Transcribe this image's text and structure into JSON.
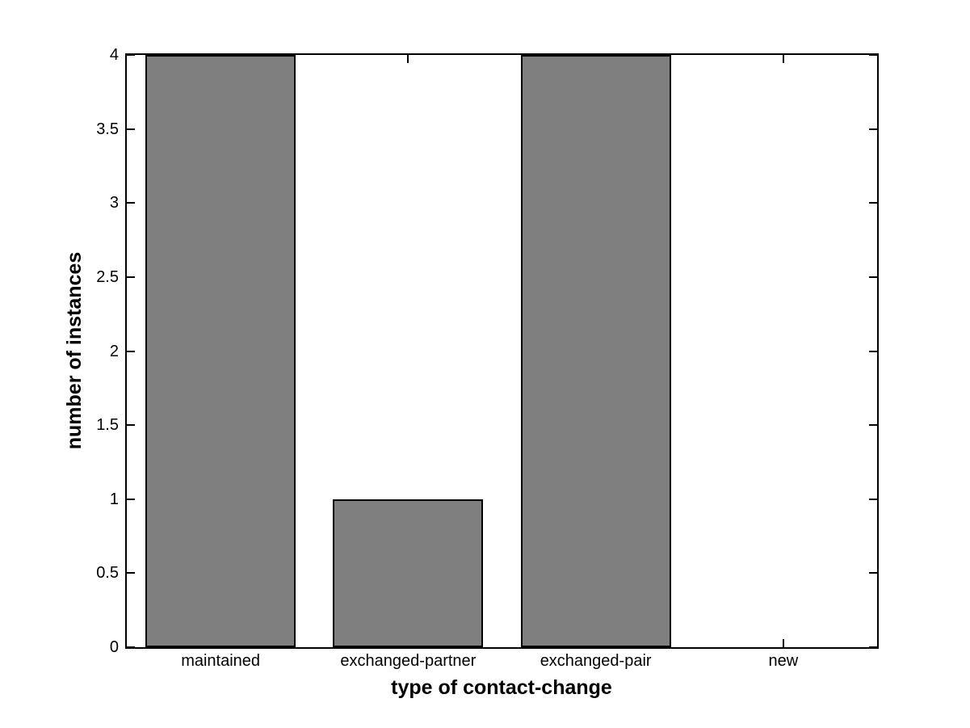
{
  "figure": {
    "background": "#ffffff",
    "axis_color": "#000000",
    "text_color": "#000000"
  },
  "chart_data": {
    "type": "bar",
    "title": "",
    "xlabel": "type of contact-change",
    "ylabel": "number of instances",
    "categories": [
      "maintained",
      "exchanged-partner",
      "exchanged-pair",
      "new"
    ],
    "values": [
      4,
      1,
      4,
      0
    ],
    "xlim": [
      0.5,
      4.5
    ],
    "ylim": [
      0,
      4
    ],
    "ytick_step": 0.5,
    "ytick_labels": [
      "0",
      "0.5",
      "1",
      "1.5",
      "2",
      "2.5",
      "3",
      "3.5",
      "4"
    ],
    "bar_color": "#7f7f7f",
    "bar_edge_color": "#000000",
    "bar_width_fraction": 0.8,
    "grid": false,
    "legend_position": "none",
    "box": true,
    "tick_direction": "in"
  }
}
